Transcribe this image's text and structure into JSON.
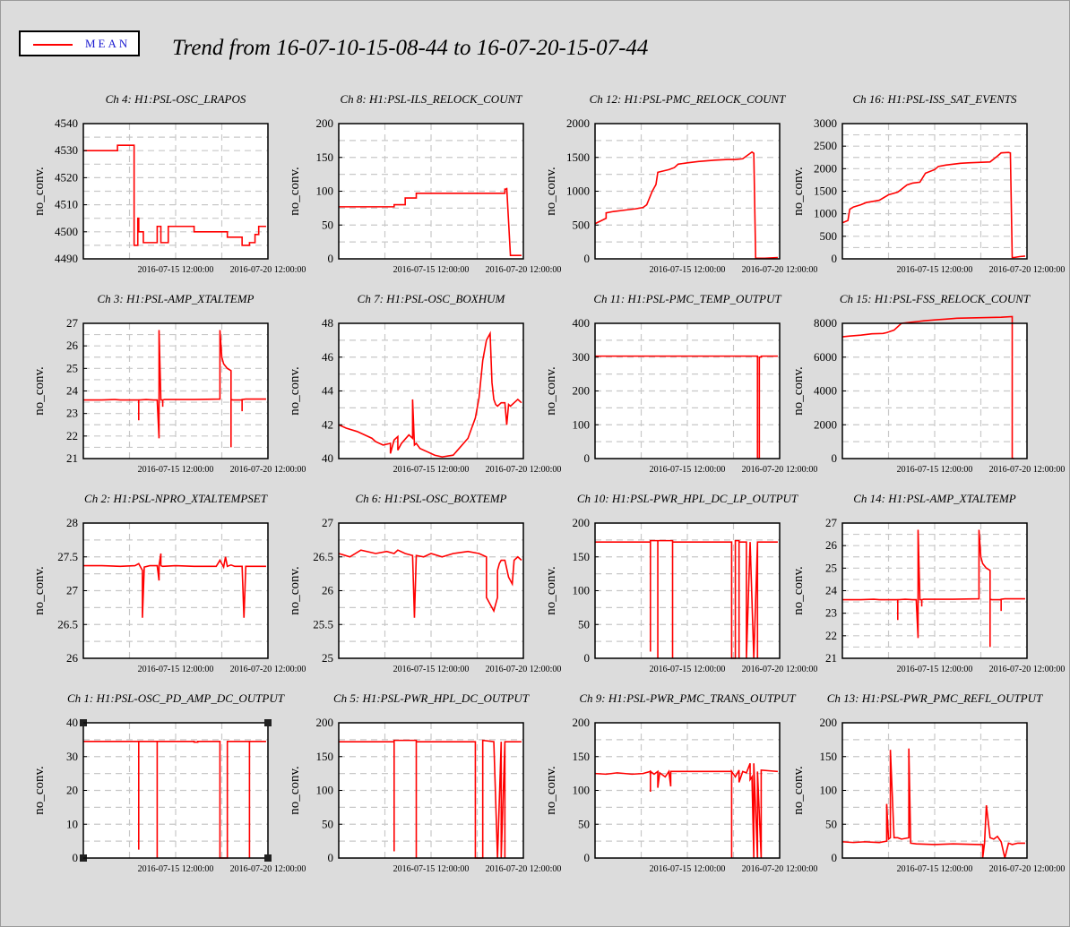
{
  "title": "Trend from 16-07-10-15-08-44 to 16-07-20-15-07-44",
  "legend": {
    "label": "MEAN",
    "color": "#ff0000"
  },
  "colors": {
    "trace": "#ff0000",
    "grid": "#c8c8c8",
    "plot_bg": "#ffffff",
    "page_bg": "#dcdcdc"
  },
  "x_tick_labels": [
    "2016-07-15 12:00:00",
    "2016-07-20 12:00:00"
  ],
  "chart_data": [
    {
      "type": "line",
      "title": "Ch 4: H1:PSL-OSC_LRAPOS",
      "ylabel": "no_conv.",
      "ylim": [
        4490,
        4540
      ],
      "yticks": [
        4490,
        4500,
        4510,
        4520,
        4530,
        4540
      ],
      "x": [
        0,
        0.185,
        0.185,
        0.275,
        0.275,
        0.295,
        0.295,
        0.3,
        0.3,
        0.325,
        0.325,
        0.4,
        0.4,
        0.42,
        0.42,
        0.46,
        0.46,
        0.6,
        0.6,
        0.62,
        0.62,
        0.78,
        0.78,
        0.8,
        0.8,
        0.86,
        0.86,
        0.9,
        0.9,
        0.93,
        0.93,
        0.95,
        0.95,
        0.99
      ],
      "y": [
        4530,
        4530,
        4532,
        4532,
        4495,
        4495,
        4505,
        4505,
        4500,
        4500,
        4496,
        4496,
        4502,
        4502,
        4496,
        4496,
        4502,
        4502,
        4500,
        4500,
        4500,
        4500,
        4498,
        4498,
        4498,
        4498,
        4495,
        4495,
        4496,
        4496,
        4499,
        4499,
        4502,
        4502
      ]
    },
    {
      "type": "line",
      "title": "Ch 8: H1:PSL-ILS_RELOCK_COUNT",
      "ylabel": "no_conv.",
      "ylim": [
        0,
        200
      ],
      "yticks": [
        0,
        50,
        100,
        150,
        200
      ],
      "x": [
        0,
        0.3,
        0.3,
        0.36,
        0.36,
        0.42,
        0.42,
        0.78,
        0.78,
        0.9,
        0.9,
        0.91,
        0.91,
        0.93,
        0.95,
        0.99
      ],
      "y": [
        77,
        77,
        80,
        80,
        90,
        90,
        97,
        97,
        97,
        97,
        103,
        103,
        105,
        5,
        5,
        5
      ]
    },
    {
      "type": "line",
      "title": "Ch 12: H1:PSL-PMC_RELOCK_COUNT",
      "ylabel": "no_conv.",
      "ylim": [
        0,
        2000
      ],
      "yticks": [
        0,
        500,
        1000,
        1500,
        2000
      ],
      "x": [
        0,
        0.03,
        0.06,
        0.06,
        0.1,
        0.16,
        0.22,
        0.26,
        0.28,
        0.31,
        0.33,
        0.34,
        0.37,
        0.4,
        0.43,
        0.45,
        0.5,
        0.56,
        0.65,
        0.72,
        0.76,
        0.8,
        0.84,
        0.85,
        0.86,
        0.87,
        0.92,
        0.99
      ],
      "y": [
        520,
        560,
        600,
        680,
        700,
        720,
        740,
        760,
        800,
        1000,
        1100,
        1280,
        1300,
        1320,
        1350,
        1400,
        1420,
        1440,
        1460,
        1470,
        1470,
        1480,
        1560,
        1580,
        1560,
        10,
        10,
        20
      ]
    },
    {
      "type": "line",
      "title": "Ch 16: H1:PSL-ISS_SAT_EVENTS",
      "ylabel": "no_conv.",
      "ylim": [
        0,
        3000
      ],
      "yticks": [
        0,
        500,
        1000,
        1500,
        2000,
        2500,
        3000
      ],
      "x": [
        0,
        0.03,
        0.04,
        0.06,
        0.1,
        0.13,
        0.16,
        0.2,
        0.25,
        0.3,
        0.35,
        0.38,
        0.42,
        0.45,
        0.5,
        0.52,
        0.56,
        0.6,
        0.64,
        0.68,
        0.74,
        0.8,
        0.84,
        0.86,
        0.9,
        0.91,
        0.92,
        0.93,
        0.96,
        0.99
      ],
      "y": [
        800,
        850,
        1100,
        1150,
        1200,
        1250,
        1270,
        1300,
        1420,
        1480,
        1640,
        1680,
        1700,
        1900,
        1980,
        2050,
        2080,
        2100,
        2120,
        2130,
        2140,
        2150,
        2280,
        2350,
        2360,
        2350,
        30,
        30,
        50,
        60
      ]
    },
    {
      "type": "line",
      "title": "Ch 3: H1:PSL-AMP_XTALTEMP",
      "ylabel": "no_conv.",
      "ylim": [
        21,
        27
      ],
      "yticks": [
        21,
        22,
        23,
        24,
        25,
        26,
        27
      ],
      "x": [
        0,
        0.1,
        0.17,
        0.2,
        0.3,
        0.3,
        0.3,
        0.34,
        0.38,
        0.4,
        0.41,
        0.41,
        0.41,
        0.42,
        0.43,
        0.43,
        0.43,
        0.44,
        0.6,
        0.74,
        0.74,
        0.75,
        0.76,
        0.78,
        0.8,
        0.8,
        0.8,
        0.81,
        0.84,
        0.86,
        0.86,
        0.86,
        0.88,
        0.95,
        0.99
      ],
      "y": [
        23.6,
        23.6,
        23.62,
        23.6,
        23.6,
        22.7,
        23.6,
        23.62,
        23.6,
        23.6,
        21.9,
        23.6,
        26.7,
        23.6,
        23.6,
        23.3,
        23.6,
        23.62,
        23.62,
        23.64,
        26.7,
        25.5,
        25.2,
        25.0,
        24.9,
        21.5,
        23.62,
        23.6,
        23.6,
        23.6,
        23.1,
        23.62,
        23.64,
        23.64,
        23.64
      ]
    },
    {
      "type": "line",
      "title": "Ch 7: H1:PSL-OSC_BOXHUM",
      "ylabel": "no_conv.",
      "ylim": [
        40,
        48
      ],
      "yticks": [
        40,
        42,
        44,
        46,
        48
      ],
      "x": [
        0,
        0.04,
        0.1,
        0.18,
        0.2,
        0.24,
        0.28,
        0.28,
        0.3,
        0.32,
        0.32,
        0.34,
        0.38,
        0.4,
        0.4,
        0.41,
        0.42,
        0.44,
        0.48,
        0.52,
        0.56,
        0.62,
        0.66,
        0.7,
        0.72,
        0.74,
        0.76,
        0.78,
        0.8,
        0.82,
        0.83,
        0.84,
        0.85,
        0.86,
        0.88,
        0.9,
        0.91,
        0.92,
        0.93,
        0.95,
        0.97,
        0.99
      ],
      "y": [
        42,
        41.8,
        41.6,
        41.2,
        41,
        40.8,
        40.9,
        40.3,
        41.1,
        41.3,
        40.5,
        40.9,
        41.4,
        41.2,
        43.5,
        40.8,
        40.9,
        40.6,
        40.4,
        40.2,
        40.1,
        40.2,
        40.7,
        41.2,
        41.8,
        42.4,
        43.6,
        45.8,
        47,
        47.4,
        44.5,
        43.5,
        43.2,
        43.1,
        43.3,
        43.3,
        42,
        43.2,
        43.1,
        43.3,
        43.5,
        43.3
      ]
    },
    {
      "type": "line",
      "title": "Ch 11: H1:PSL-PMC_TEMP_OUTPUT",
      "ylabel": "no_conv.",
      "ylim": [
        0,
        400
      ],
      "yticks": [
        0,
        100,
        200,
        300,
        400
      ],
      "x": [
        0,
        0.88,
        0.88,
        0.89,
        0.89,
        0.9,
        0.9,
        0.99
      ],
      "y": [
        303,
        303,
        0,
        0,
        300,
        300,
        303,
        303
      ]
    },
    {
      "type": "line",
      "title": "Ch 15: H1:PSL-FSS_RELOCK_COUNT",
      "ylabel": "no_conv.",
      "ylim": [
        0,
        8000
      ],
      "yticks": [
        0,
        2000,
        4000,
        6000,
        8000
      ],
      "x": [
        0,
        0.04,
        0.1,
        0.16,
        0.22,
        0.24,
        0.28,
        0.32,
        0.36,
        0.4,
        0.44,
        0.5,
        0.56,
        0.62,
        0.7,
        0.78,
        0.86,
        0.92,
        0.92,
        0.93
      ],
      "y": [
        7200,
        7250,
        7300,
        7380,
        7400,
        7450,
        7600,
        8000,
        8050,
        8100,
        8150,
        8200,
        8250,
        8300,
        8320,
        8340,
        8360,
        8400,
        10,
        0
      ]
    },
    {
      "type": "line",
      "title": "Ch 2: H1:PSL-NPRO_XTALTEMPSET",
      "ylabel": "no_conv.",
      "ylim": [
        26,
        28
      ],
      "yticks": [
        26,
        26.5,
        27,
        27.5,
        28
      ],
      "x": [
        0,
        0.1,
        0.2,
        0.28,
        0.3,
        0.31,
        0.32,
        0.32,
        0.33,
        0.36,
        0.4,
        0.41,
        0.41,
        0.42,
        0.42,
        0.43,
        0.5,
        0.6,
        0.72,
        0.74,
        0.76,
        0.77,
        0.78,
        0.8,
        0.82,
        0.86,
        0.87,
        0.88,
        0.9,
        0.95,
        0.99
      ],
      "y": [
        27.37,
        27.37,
        27.36,
        27.37,
        27.4,
        27.35,
        27.3,
        26.6,
        27.35,
        27.37,
        27.37,
        27.15,
        27.37,
        27.55,
        27.37,
        27.36,
        27.37,
        27.36,
        27.36,
        27.45,
        27.35,
        27.5,
        27.36,
        27.38,
        27.36,
        27.36,
        26.6,
        27.36,
        27.36,
        27.36,
        27.36
      ]
    },
    {
      "type": "line",
      "title": "Ch 6: H1:PSL-OSC_BOXTEMP",
      "ylabel": "no_conv.",
      "ylim": [
        25,
        27
      ],
      "yticks": [
        25,
        25.5,
        26,
        26.5,
        27
      ],
      "x": [
        0,
        0.06,
        0.12,
        0.2,
        0.26,
        0.3,
        0.32,
        0.36,
        0.4,
        0.41,
        0.42,
        0.46,
        0.5,
        0.56,
        0.62,
        0.7,
        0.76,
        0.8,
        0.8,
        0.82,
        0.84,
        0.86,
        0.86,
        0.87,
        0.88,
        0.9,
        0.92,
        0.94,
        0.95,
        0.97,
        0.99
      ],
      "y": [
        26.55,
        26.5,
        26.6,
        26.55,
        26.58,
        26.55,
        26.6,
        26.55,
        26.52,
        25.6,
        26.52,
        26.5,
        26.55,
        26.5,
        26.55,
        26.58,
        26.55,
        26.5,
        25.9,
        25.8,
        25.7,
        25.9,
        26.3,
        26.4,
        26.45,
        26.45,
        26.2,
        26.1,
        26.45,
        26.5,
        26.45
      ]
    },
    {
      "type": "line",
      "title": "Ch 10: H1:PSL-PWR_HPL_DC_LP_OUTPUT",
      "ylabel": "no_conv.",
      "ylim": [
        0,
        200
      ],
      "yticks": [
        0,
        50,
        100,
        150,
        200
      ],
      "x": [
        0,
        0.3,
        0.3,
        0.3,
        0.3,
        0.34,
        0.34,
        0.34,
        0.34,
        0.42,
        0.42,
        0.42,
        0.42,
        0.74,
        0.74,
        0.74,
        0.74,
        0.76,
        0.76,
        0.76,
        0.76,
        0.78,
        0.78,
        0.78,
        0.78,
        0.82,
        0.82,
        0.82,
        0.82,
        0.84,
        0.86,
        0.88,
        0.88,
        0.88,
        0.88,
        0.99
      ],
      "y": [
        172,
        172,
        172,
        10,
        174,
        174,
        0,
        0,
        174,
        174,
        0,
        0,
        172,
        172,
        172,
        0,
        0,
        0,
        0,
        0,
        174,
        174,
        0,
        0,
        172,
        172,
        0,
        172,
        0,
        172,
        0,
        172,
        0,
        172,
        172,
        172
      ]
    },
    {
      "type": "line",
      "title": "Ch 14: H1:PSL-AMP_XTALTEMP",
      "ylabel": "no_conv.",
      "ylim": [
        21,
        27
      ],
      "yticks": [
        21,
        22,
        23,
        24,
        25,
        26,
        27
      ],
      "x": [
        0,
        0.1,
        0.17,
        0.2,
        0.3,
        0.3,
        0.3,
        0.34,
        0.38,
        0.4,
        0.41,
        0.41,
        0.41,
        0.42,
        0.43,
        0.43,
        0.43,
        0.44,
        0.6,
        0.74,
        0.74,
        0.75,
        0.76,
        0.78,
        0.8,
        0.8,
        0.8,
        0.81,
        0.84,
        0.86,
        0.86,
        0.86,
        0.88,
        0.95,
        0.99
      ],
      "y": [
        23.6,
        23.6,
        23.62,
        23.6,
        23.6,
        22.7,
        23.6,
        23.62,
        23.6,
        23.6,
        21.9,
        23.6,
        26.7,
        23.6,
        23.6,
        23.3,
        23.6,
        23.62,
        23.62,
        23.64,
        26.7,
        25.5,
        25.2,
        25.0,
        24.9,
        21.5,
        23.62,
        23.6,
        23.6,
        23.6,
        23.1,
        23.62,
        23.64,
        23.64,
        23.64
      ]
    },
    {
      "type": "line",
      "title": "Ch 1: H1:PSL-OSC_PD_AMP_DC_OUTPUT",
      "ylabel": "no_conv.",
      "ylim": [
        0,
        40
      ],
      "yticks": [
        0,
        10,
        20,
        30,
        40
      ],
      "x": [
        0,
        0.3,
        0.3,
        0.3,
        0.3,
        0.4,
        0.4,
        0.4,
        0.4,
        0.6,
        0.6,
        0.62,
        0.62,
        0.74,
        0.74,
        0.74,
        0.74,
        0.78,
        0.78,
        0.78,
        0.78,
        0.9,
        0.9,
        0.9,
        0.9,
        0.99
      ],
      "y": [
        34.5,
        34.5,
        34.5,
        2.5,
        34.5,
        34.5,
        0,
        0,
        34.5,
        34.5,
        34.3,
        34.3,
        34.5,
        34.5,
        0,
        0,
        0,
        0,
        34.5,
        34.5,
        34.5,
        34.5,
        0,
        0,
        34.5,
        34.5
      ]
    },
    {
      "type": "line",
      "title": "Ch 5: H1:PSL-PWR_HPL_DC_OUTPUT",
      "ylabel": "no_conv.",
      "ylim": [
        0,
        200
      ],
      "yticks": [
        0,
        50,
        100,
        150,
        200
      ],
      "x": [
        0,
        0.3,
        0.3,
        0.3,
        0.3,
        0.42,
        0.42,
        0.42,
        0.42,
        0.74,
        0.74,
        0.74,
        0.74,
        0.78,
        0.78,
        0.78,
        0.78,
        0.84,
        0.86,
        0.88,
        0.88,
        0.88,
        0.88,
        0.9,
        0.9,
        0.9,
        0.9,
        0.99
      ],
      "y": [
        172,
        172,
        172,
        10,
        174,
        174,
        0,
        0,
        172,
        172,
        172,
        0,
        0,
        0,
        0,
        172,
        174,
        172,
        0,
        172,
        0,
        172,
        0,
        172,
        0,
        172,
        172,
        172
      ]
    },
    {
      "type": "line",
      "title": "Ch 9: H1:PSL-PWR_PMC_TRANS_OUTPUT",
      "ylabel": "no_conv.",
      "ylim": [
        0,
        200
      ],
      "yticks": [
        0,
        50,
        100,
        150,
        200
      ],
      "x": [
        0,
        0.06,
        0.12,
        0.2,
        0.26,
        0.3,
        0.3,
        0.3,
        0.32,
        0.34,
        0.34,
        0.35,
        0.38,
        0.4,
        0.41,
        0.41,
        0.42,
        0.5,
        0.6,
        0.74,
        0.74,
        0.74,
        0.76,
        0.78,
        0.78,
        0.8,
        0.82,
        0.84,
        0.84,
        0.85,
        0.86,
        0.86,
        0.88,
        0.88,
        0.9,
        0.9,
        0.99
      ],
      "y": [
        125,
        124,
        126,
        124,
        125,
        128,
        98,
        128,
        124,
        128,
        104,
        126,
        120,
        128,
        106,
        128,
        128,
        128,
        128,
        128,
        0,
        128,
        120,
        130,
        112,
        128,
        126,
        140,
        116,
        120,
        0,
        140,
        0,
        128,
        0,
        130,
        128
      ]
    },
    {
      "type": "line",
      "title": "Ch 13: H1:PSL-PWR_PMC_REFL_OUTPUT",
      "ylabel": "no_conv.",
      "ylim": [
        0,
        200
      ],
      "yticks": [
        0,
        50,
        100,
        150,
        200
      ],
      "x": [
        0,
        0.06,
        0.12,
        0.2,
        0.24,
        0.24,
        0.25,
        0.26,
        0.26,
        0.28,
        0.3,
        0.3,
        0.32,
        0.36,
        0.36,
        0.37,
        0.4,
        0.5,
        0.6,
        0.74,
        0.76,
        0.76,
        0.77,
        0.78,
        0.8,
        0.82,
        0.84,
        0.86,
        0.88,
        0.9,
        0.92,
        0.95,
        0.99
      ],
      "y": [
        24,
        23,
        24,
        23,
        25,
        80,
        28,
        30,
        160,
        30,
        30,
        30,
        28,
        30,
        162,
        22,
        21,
        20,
        21,
        20,
        20,
        0,
        22,
        78,
        30,
        28,
        32,
        24,
        0,
        22,
        20,
        22,
        22
      ]
    }
  ]
}
